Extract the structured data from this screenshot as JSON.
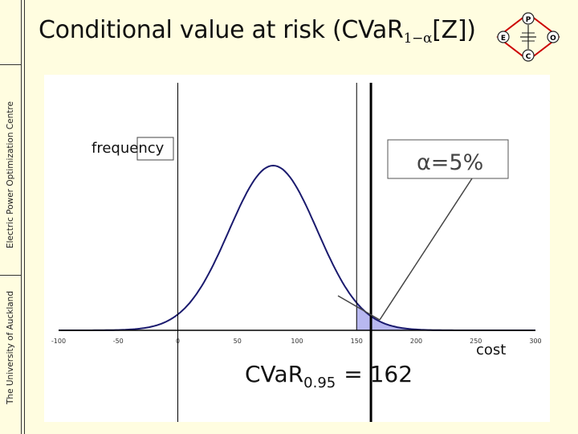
{
  "sidebar": {
    "university": "The University of Auckland",
    "centre": "Electric Power Optimization Centre"
  },
  "title": {
    "main": "Conditional value at risk (CVaR",
    "subscript": "1−α",
    "tail": "[Z])"
  },
  "logo": {
    "top": "P",
    "left": "E",
    "right": "O",
    "bottom": "C"
  },
  "figure": {
    "ylabel": "frequency",
    "xlabel": "cost",
    "alpha_label": "α=5%",
    "cvar_label": "CVaR",
    "cvar_subscript": "0.95",
    "cvar_value": "= 162",
    "colors": {
      "curve": "#1a1a6e",
      "tail_fill": "#b8b8f0",
      "axis": "#000000"
    }
  },
  "chart_data": {
    "type": "line",
    "xlim": [
      -100,
      300
    ],
    "ticks": [
      -100,
      -50,
      0,
      50,
      100,
      150,
      200,
      250,
      300
    ],
    "distribution": {
      "mean": 80,
      "sd": 37
    },
    "var_line": 150,
    "cvar_line": 162,
    "alpha": 0.05
  }
}
